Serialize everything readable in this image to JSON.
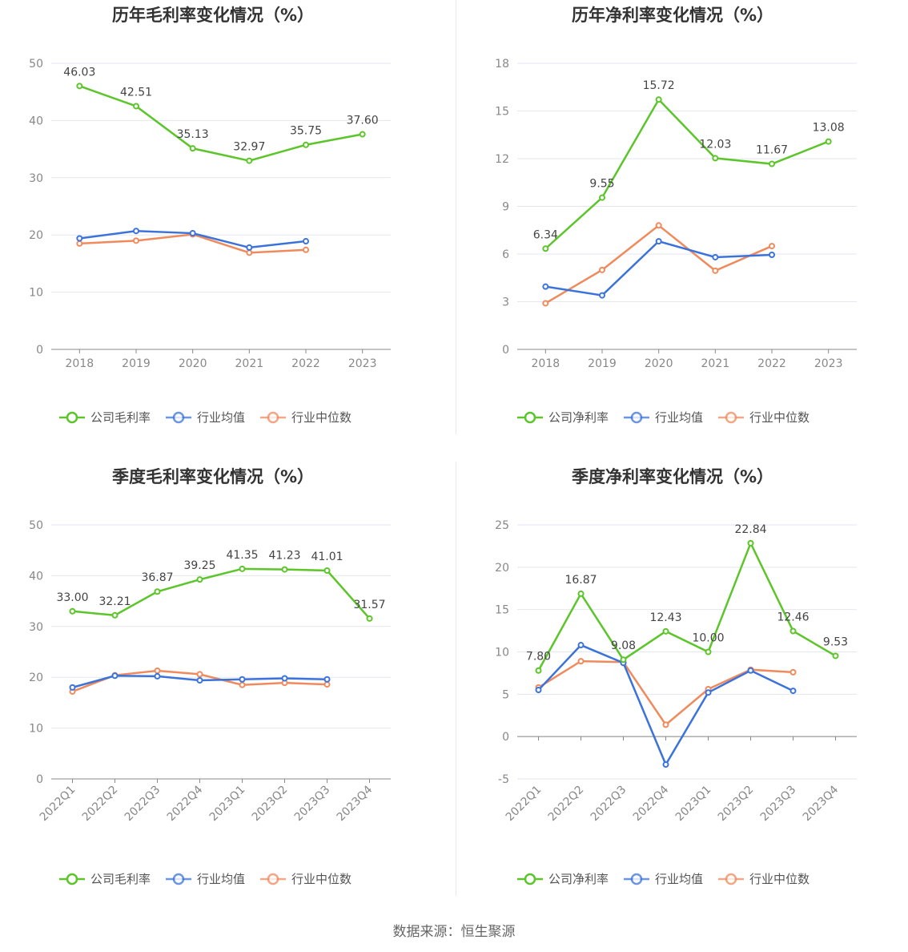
{
  "colors": {
    "company": "#5cc52a",
    "avg": "#3b73db",
    "median": "#f08a5d",
    "grid": "#e5e7f0",
    "axis": "#888888"
  },
  "source_text": "数据来源：恒生聚源",
  "chart_data": [
    {
      "type": "line",
      "title": "历年毛利率变化情况（%）",
      "categories": [
        "2018",
        "2019",
        "2020",
        "2021",
        "2022",
        "2023"
      ],
      "ylim": [
        0,
        50
      ],
      "yticks": [
        0,
        10,
        20,
        30,
        40,
        50
      ],
      "rotate_x": false,
      "series": [
        {
          "name": "公司毛利率",
          "role": "company",
          "values": [
            46.03,
            42.51,
            35.13,
            32.97,
            35.75,
            37.6
          ],
          "labels": [
            "46.03",
            "42.51",
            "35.13",
            "32.97",
            "35.75",
            "37.60"
          ]
        },
        {
          "name": "行业均值",
          "role": "avg",
          "values": [
            19.4,
            20.7,
            20.3,
            17.8,
            18.9,
            null
          ],
          "labels": []
        },
        {
          "name": "行业中位数",
          "role": "median",
          "values": [
            18.5,
            19.0,
            20.1,
            16.9,
            17.4,
            null
          ],
          "labels": []
        }
      ],
      "legend": "bottom-center"
    },
    {
      "type": "line",
      "title": "历年净利率变化情况（%）",
      "categories": [
        "2018",
        "2019",
        "2020",
        "2021",
        "2022",
        "2023"
      ],
      "ylim": [
        0,
        18
      ],
      "yticks": [
        0,
        3,
        6,
        9,
        12,
        15,
        18
      ],
      "rotate_x": false,
      "series": [
        {
          "name": "公司净利率",
          "role": "company",
          "values": [
            6.34,
            9.55,
            15.72,
            12.03,
            11.67,
            13.08
          ],
          "labels": [
            "6.34",
            "9.55",
            "15.72",
            "12.03",
            "11.67",
            "13.08"
          ]
        },
        {
          "name": "行业均值",
          "role": "avg",
          "values": [
            3.95,
            3.4,
            6.8,
            5.8,
            5.95,
            null
          ],
          "labels": []
        },
        {
          "name": "行业中位数",
          "role": "median",
          "values": [
            2.9,
            5.0,
            7.8,
            4.95,
            6.5,
            null
          ],
          "labels": []
        }
      ],
      "legend": "bottom-center"
    },
    {
      "type": "line",
      "title": "季度毛利率变化情况（%）",
      "categories": [
        "2022Q1",
        "2022Q2",
        "2022Q3",
        "2022Q4",
        "2023Q1",
        "2023Q2",
        "2023Q3",
        "2023Q4"
      ],
      "ylim": [
        0,
        50
      ],
      "yticks": [
        0,
        10,
        20,
        30,
        40,
        50
      ],
      "rotate_x": true,
      "series": [
        {
          "name": "公司毛利率",
          "role": "company",
          "values": [
            33.0,
            32.21,
            36.87,
            39.25,
            41.35,
            41.23,
            41.01,
            31.57
          ],
          "labels": [
            "33.00",
            "32.21",
            "36.87",
            "39.25",
            "41.35",
            "41.23",
            "41.01",
            "31.57"
          ]
        },
        {
          "name": "行业均值",
          "role": "avg",
          "values": [
            18.0,
            20.3,
            20.2,
            19.4,
            19.6,
            19.8,
            19.6,
            null
          ],
          "labels": []
        },
        {
          "name": "行业中位数",
          "role": "median",
          "values": [
            17.2,
            20.4,
            21.3,
            20.6,
            18.5,
            18.9,
            18.6,
            null
          ],
          "labels": []
        }
      ],
      "legend": "bottom-center"
    },
    {
      "type": "line",
      "title": "季度净利率变化情况（%）",
      "categories": [
        "2022Q1",
        "2022Q2",
        "2022Q3",
        "2022Q4",
        "2023Q1",
        "2023Q2",
        "2023Q3",
        "2023Q4"
      ],
      "ylim": [
        -5,
        25
      ],
      "yticks": [
        -5,
        0,
        5,
        10,
        15,
        20,
        25
      ],
      "rotate_x": true,
      "series": [
        {
          "name": "公司净利率",
          "role": "company",
          "values": [
            7.8,
            16.87,
            9.08,
            12.43,
            10.0,
            22.84,
            12.46,
            9.53
          ],
          "labels": [
            "7.80",
            "16.87",
            "9.08",
            "12.43",
            "10.00",
            "22.84",
            "12.46",
            "9.53"
          ]
        },
        {
          "name": "行业均值",
          "role": "avg",
          "values": [
            5.5,
            10.8,
            8.7,
            -3.3,
            5.2,
            7.8,
            5.4,
            null
          ],
          "labels": []
        },
        {
          "name": "行业中位数",
          "role": "median",
          "values": [
            5.8,
            8.9,
            8.8,
            1.4,
            5.6,
            7.9,
            7.6,
            null
          ],
          "labels": []
        }
      ],
      "legend": "bottom-center"
    }
  ]
}
